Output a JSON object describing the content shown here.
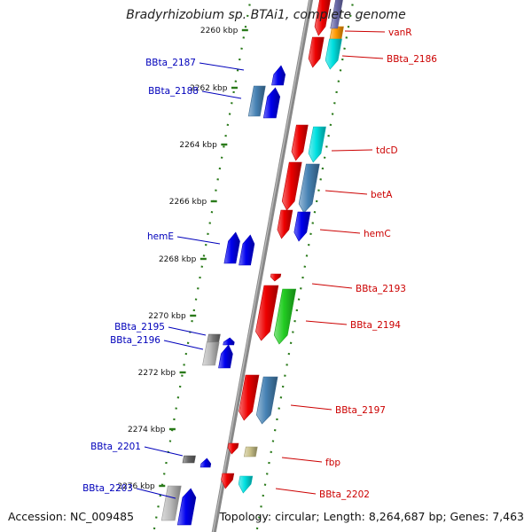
{
  "title": "Bradyrhizobium sp. BTAi1, complete genome",
  "accession_label": "Accession: NC_009485",
  "topology_label": "Topology: circular; Length: 8,264,687 bp; Genes: 7,463",
  "colors": {
    "backbone": "#888888",
    "scale": "#2a7a1a",
    "left_label": "#0000bb",
    "right_label": "#cc0000"
  },
  "scale_ticks": [
    {
      "label": "2260 kbp"
    },
    {
      "label": "2262 kbp"
    },
    {
      "label": "2264 kbp"
    },
    {
      "label": "2266 kbp"
    },
    {
      "label": "2268 kbp"
    },
    {
      "label": "2270 kbp"
    },
    {
      "label": "2272 kbp"
    },
    {
      "label": "2274 kbp"
    },
    {
      "label": "2276 kbp"
    }
  ],
  "left_labels": [
    {
      "text": "BBta_2187"
    },
    {
      "text": "BBta_2188"
    },
    {
      "text": "hemE"
    },
    {
      "text": "BBta_2195"
    },
    {
      "text": "BBta_2196"
    },
    {
      "text": "BBta_2201"
    },
    {
      "text": "BBta_2203"
    }
  ],
  "right_labels": [
    {
      "text": "vanR"
    },
    {
      "text": "BBta_2186"
    },
    {
      "text": "tdcD"
    },
    {
      "text": "betA"
    },
    {
      "text": "hemC"
    },
    {
      "text": "BBta_2193"
    },
    {
      "text": "BBta_2194"
    },
    {
      "text": "BBta_2197"
    },
    {
      "text": "fbp"
    },
    {
      "text": "BBta_2202"
    }
  ],
  "genes": [
    {
      "name": "vanR-region-red",
      "color": "#ee0000"
    },
    {
      "name": "vanR-region-orange",
      "color": "#ff9900"
    },
    {
      "name": "vanR-region-navy",
      "color": "#6a6aa8"
    },
    {
      "name": "bbta2186-red",
      "color": "#ee0000"
    },
    {
      "name": "bbta2186-cyan",
      "color": "#00e0e0"
    },
    {
      "name": "bbta2187-blue",
      "color": "#0000ee"
    },
    {
      "name": "bbta2188-steel",
      "color": "#4682b4"
    },
    {
      "name": "bbta2188-blue",
      "color": "#0000ee"
    },
    {
      "name": "tdcD-red",
      "color": "#ee0000"
    },
    {
      "name": "tdcD-cyan",
      "color": "#00e0e0"
    },
    {
      "name": "betA-red",
      "color": "#ee0000"
    },
    {
      "name": "betA-steel",
      "color": "#4682b4"
    },
    {
      "name": "hemC-red",
      "color": "#ee0000"
    },
    {
      "name": "hemC-blue",
      "color": "#0000ee"
    },
    {
      "name": "hemE-blue-1",
      "color": "#0000ee"
    },
    {
      "name": "hemE-blue-2",
      "color": "#0000ee"
    },
    {
      "name": "bbta2193-red",
      "color": "#ee0000"
    },
    {
      "name": "bbta2194-red",
      "color": "#ee0000"
    },
    {
      "name": "bbta2194-green",
      "color": "#22cc22"
    },
    {
      "name": "bbta2195-gray",
      "color": "#777777"
    },
    {
      "name": "bbta2195-blue",
      "color": "#0000ee"
    },
    {
      "name": "bbta2196-silver",
      "color": "#bbbbbb"
    },
    {
      "name": "bbta2196-blue",
      "color": "#0000ee"
    },
    {
      "name": "bbta2197-red",
      "color": "#ee0000"
    },
    {
      "name": "bbta2197-steel",
      "color": "#4682b4"
    },
    {
      "name": "bbta2201-gray",
      "color": "#666666"
    },
    {
      "name": "bbta2201-blue",
      "color": "#0000ee"
    },
    {
      "name": "fbp-red",
      "color": "#ee0000"
    },
    {
      "name": "fbp-khaki",
      "color": "#c8c088"
    },
    {
      "name": "bbta2202-red",
      "color": "#ee0000"
    },
    {
      "name": "bbta2202-cyan",
      "color": "#00e0e0"
    },
    {
      "name": "bbta2203-silver",
      "color": "#bbbbbb"
    },
    {
      "name": "bbta2203-blue",
      "color": "#0000ee"
    }
  ]
}
